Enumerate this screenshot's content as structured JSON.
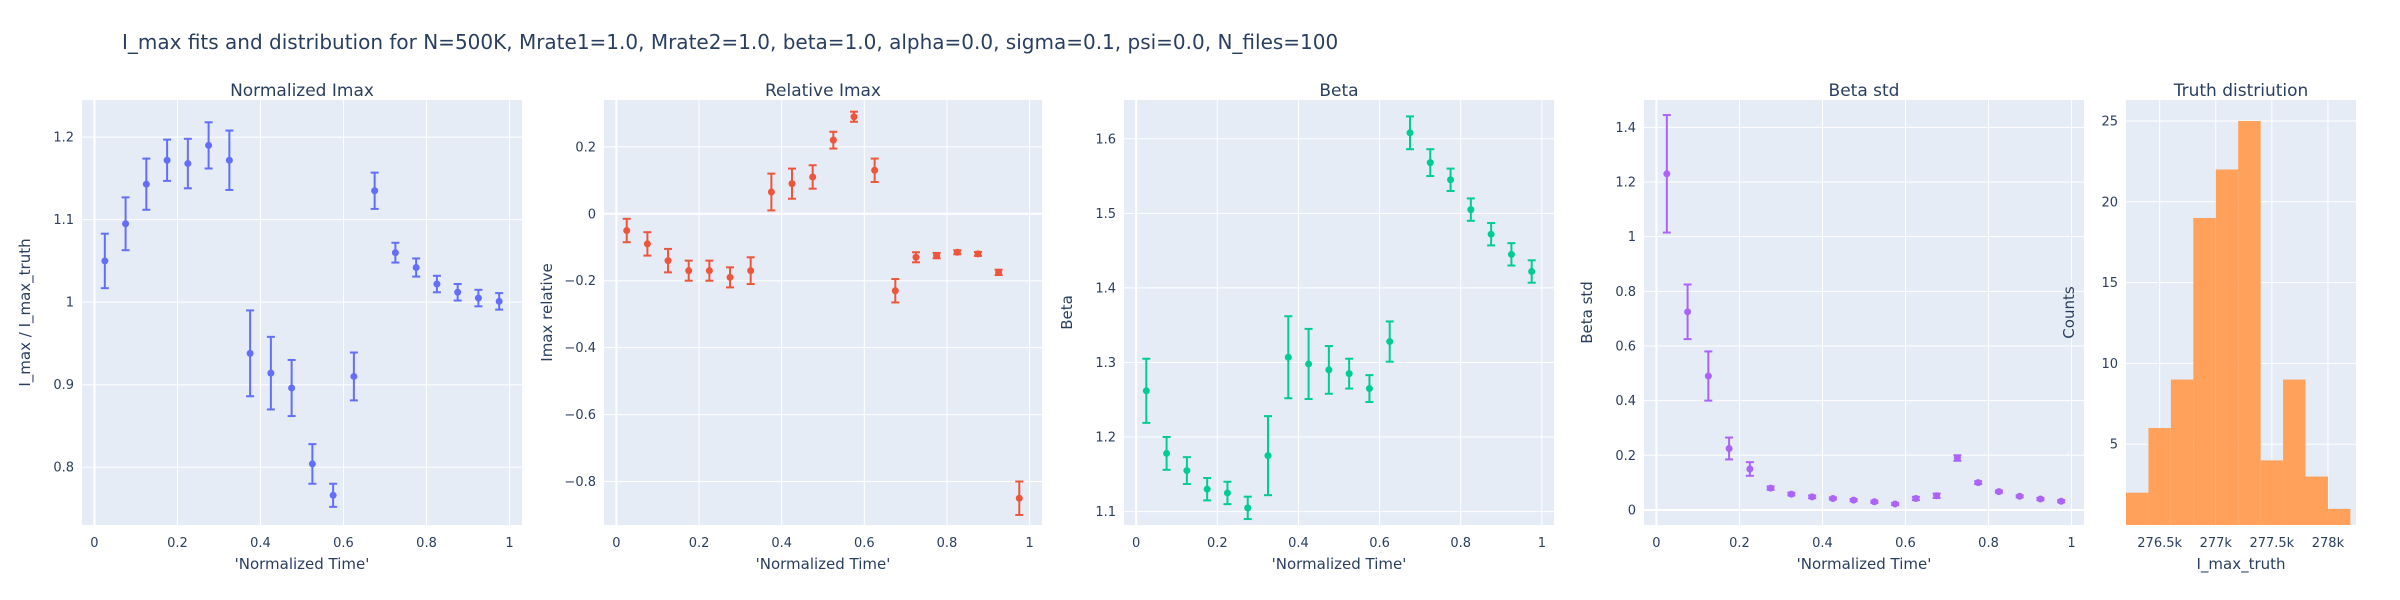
{
  "figure_title": "I_max fits and distribution for N=500K, Mrate1=1.0, Mrate2=1.0, beta=1.0, alpha=0.0, sigma=0.1,  psi=0.0, N_files=100",
  "colors": {
    "plot_bg": "#e5ecf6",
    "grid": "#ffffff",
    "text": "#2a3f5f",
    "series1": "#636efa",
    "series2": "#ef553b",
    "series3": "#00cc96",
    "series4": "#ab63fa",
    "series5": "#ffa15a"
  },
  "chart_data": [
    {
      "type": "scatter",
      "title": "Normalized Imax",
      "xlabel": "'Normalized Time'",
      "ylabel": "I_max / I_max_truth",
      "xlim": [
        -0.03,
        1.03
      ],
      "ylim": [
        0.73,
        1.245
      ],
      "xticks": [
        0,
        0.2,
        0.4,
        0.6,
        0.8,
        1
      ],
      "xtick_labels": [
        "0",
        "0.2",
        "0.4",
        "0.6",
        "0.8",
        "1"
      ],
      "yticks": [
        0.8,
        0.9,
        1.0,
        1.1,
        1.2
      ],
      "ytick_labels": [
        "0.8",
        "0.9",
        "1",
        "1.1",
        "1.2"
      ],
      "color": "#636efa",
      "x": [
        0.025,
        0.075,
        0.125,
        0.175,
        0.225,
        0.275,
        0.325,
        0.375,
        0.425,
        0.475,
        0.525,
        0.575,
        0.625,
        0.675,
        0.725,
        0.775,
        0.825,
        0.875,
        0.925,
        0.975
      ],
      "y": [
        1.05,
        1.095,
        1.143,
        1.172,
        1.168,
        1.19,
        1.172,
        0.938,
        0.914,
        0.896,
        0.804,
        0.766,
        0.91,
        1.135,
        1.06,
        1.042,
        1.022,
        1.012,
        1.005,
        1.001
      ],
      "err": [
        0.033,
        0.032,
        0.031,
        0.025,
        0.03,
        0.028,
        0.036,
        0.052,
        0.044,
        0.034,
        0.024,
        0.014,
        0.029,
        0.022,
        0.012,
        0.011,
        0.01,
        0.01,
        0.01,
        0.01
      ]
    },
    {
      "type": "scatter",
      "title": "Relative Imax",
      "xlabel": "'Normalized Time'",
      "ylabel": "Imax relative",
      "xlim": [
        -0.03,
        1.03
      ],
      "ylim": [
        -0.93,
        0.34
      ],
      "xticks": [
        0,
        0.2,
        0.4,
        0.6,
        0.8,
        1
      ],
      "xtick_labels": [
        "0",
        "0.2",
        "0.4",
        "0.6",
        "0.8",
        "1"
      ],
      "yticks": [
        -0.8,
        -0.6,
        -0.4,
        -0.2,
        0,
        0.2
      ],
      "ytick_labels": [
        "−0.8",
        "−0.6",
        "−0.4",
        "−0.2",
        "0",
        "0.2"
      ],
      "color": "#ef553b",
      "x": [
        0.025,
        0.075,
        0.125,
        0.175,
        0.225,
        0.275,
        0.325,
        0.375,
        0.425,
        0.475,
        0.525,
        0.575,
        0.625,
        0.675,
        0.725,
        0.775,
        0.825,
        0.875,
        0.925,
        0.975
      ],
      "y": [
        -0.05,
        -0.09,
        -0.14,
        -0.17,
        -0.17,
        -0.19,
        -0.17,
        0.065,
        0.09,
        0.11,
        0.22,
        0.29,
        0.13,
        -0.23,
        -0.13,
        -0.125,
        -0.115,
        -0.12,
        -0.175,
        -0.85
      ],
      "err": [
        0.035,
        0.035,
        0.035,
        0.03,
        0.03,
        0.03,
        0.04,
        0.055,
        0.045,
        0.035,
        0.025,
        0.015,
        0.035,
        0.035,
        0.015,
        0.008,
        0.006,
        0.006,
        0.008,
        0.05
      ]
    },
    {
      "type": "scatter",
      "title": "Beta",
      "xlabel": "'Normalized Time'",
      "ylabel": "Beta",
      "xlim": [
        -0.03,
        1.03
      ],
      "ylim": [
        1.082,
        1.652
      ],
      "xticks": [
        0,
        0.2,
        0.4,
        0.6,
        0.8,
        1
      ],
      "xtick_labels": [
        "0",
        "0.2",
        "0.4",
        "0.6",
        "0.8",
        "1"
      ],
      "yticks": [
        1.1,
        1.2,
        1.3,
        1.4,
        1.5,
        1.6
      ],
      "ytick_labels": [
        "1.1",
        "1.2",
        "1.3",
        "1.4",
        "1.5",
        "1.6"
      ],
      "color": "#00cc96",
      "x": [
        0.025,
        0.075,
        0.125,
        0.175,
        0.225,
        0.275,
        0.325,
        0.375,
        0.425,
        0.475,
        0.525,
        0.575,
        0.625,
        0.675,
        0.725,
        0.775,
        0.825,
        0.875,
        0.925,
        0.975
      ],
      "y": [
        1.262,
        1.178,
        1.155,
        1.13,
        1.125,
        1.105,
        1.175,
        1.307,
        1.298,
        1.29,
        1.285,
        1.265,
        1.328,
        1.608,
        1.568,
        1.545,
        1.505,
        1.472,
        1.445,
        1.422
      ],
      "err": [
        0.043,
        0.022,
        0.018,
        0.015,
        0.015,
        0.015,
        0.053,
        0.055,
        0.047,
        0.032,
        0.02,
        0.018,
        0.027,
        0.022,
        0.018,
        0.015,
        0.015,
        0.015,
        0.015,
        0.015
      ]
    },
    {
      "type": "scatter",
      "title": "Beta std",
      "xlabel": "'Normalized Time'",
      "ylabel": "Beta std",
      "xlim": [
        -0.03,
        1.03
      ],
      "ylim": [
        -0.055,
        1.5
      ],
      "xticks": [
        0,
        0.2,
        0.4,
        0.6,
        0.8,
        1
      ],
      "xtick_labels": [
        "0",
        "0.2",
        "0.4",
        "0.6",
        "0.8",
        "1"
      ],
      "yticks": [
        0,
        0.2,
        0.4,
        0.6,
        0.8,
        1.0,
        1.2,
        1.4
      ],
      "ytick_labels": [
        "0",
        "0.2",
        "0.4",
        "0.6",
        "0.8",
        "1",
        "1.2",
        "1.4"
      ],
      "color": "#ab63fa",
      "x": [
        0.025,
        0.075,
        0.125,
        0.175,
        0.225,
        0.275,
        0.325,
        0.375,
        0.425,
        0.475,
        0.525,
        0.575,
        0.625,
        0.675,
        0.725,
        0.775,
        0.825,
        0.875,
        0.925,
        0.975
      ],
      "y": [
        1.23,
        0.725,
        0.49,
        0.225,
        0.15,
        0.08,
        0.058,
        0.048,
        0.042,
        0.036,
        0.03,
        0.022,
        0.042,
        0.052,
        0.19,
        0.1,
        0.067,
        0.05,
        0.04,
        0.032
      ],
      "err": [
        0.215,
        0.1,
        0.09,
        0.04,
        0.025,
        0.006,
        0.005,
        0.005,
        0.004,
        0.004,
        0.004,
        0.004,
        0.006,
        0.008,
        0.01,
        0.005,
        0.004,
        0.004,
        0.004,
        0.004
      ]
    },
    {
      "type": "bar",
      "title": "Truth distriution",
      "xlabel": "I_max_truth",
      "ylabel": "Counts",
      "xlim": [
        276.2,
        278.25
      ],
      "ylim": [
        0,
        26.3
      ],
      "xticks": [
        276.5,
        277.0,
        277.5,
        278.0
      ],
      "xtick_labels": [
        "276.5k",
        "277k",
        "277.5k",
        "278k"
      ],
      "yticks": [
        5,
        10,
        15,
        20,
        25
      ],
      "ytick_labels": [
        "5",
        "10",
        "15",
        "20",
        "25"
      ],
      "color": "#ffa15a",
      "bin_edges": [
        276.2,
        276.4,
        276.6,
        276.8,
        277.0,
        277.2,
        277.4,
        277.6,
        277.8,
        278.0,
        278.2
      ],
      "values": [
        2,
        6,
        9,
        19,
        22,
        25,
        4,
        9,
        3,
        1
      ]
    }
  ]
}
